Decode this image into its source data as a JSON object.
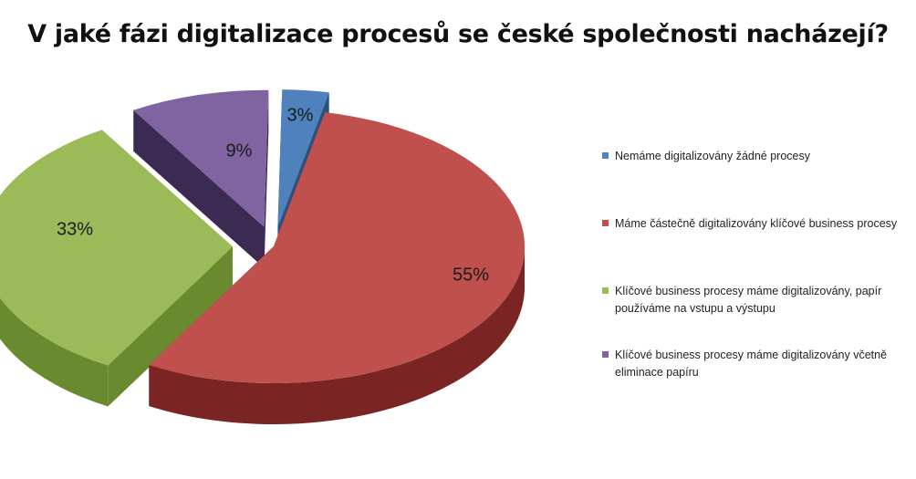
{
  "chart_data": {
    "type": "pie",
    "title": "V jaké fázi digitalizace procesů se české společnosti nacházejí?",
    "slices": [
      {
        "label": "Nemáme digitalizovány žádné procesy",
        "value": 3,
        "value_label": "3%",
        "color": "#4f81bd",
        "side_color": "#2c5282"
      },
      {
        "label": "Máme částečně digitalizovány klíčové business procesy",
        "value": 55,
        "value_label": "55%",
        "color": "#c0504d",
        "side_color": "#7a2523"
      },
      {
        "label": "Klíčové business procesy máme digitalizovány, papír používáme na vstupu a výstupu",
        "value": 33,
        "value_label": "33%",
        "color": "#9bbb59",
        "side_color": "#6a8a30"
      },
      {
        "label": "Klíčové business procesy máme digitalizovány včetně eliminace papíru",
        "value": 9,
        "value_label": "9%",
        "color": "#8064a2",
        "side_color": "#3b2a52"
      }
    ],
    "legend_position": "right"
  }
}
